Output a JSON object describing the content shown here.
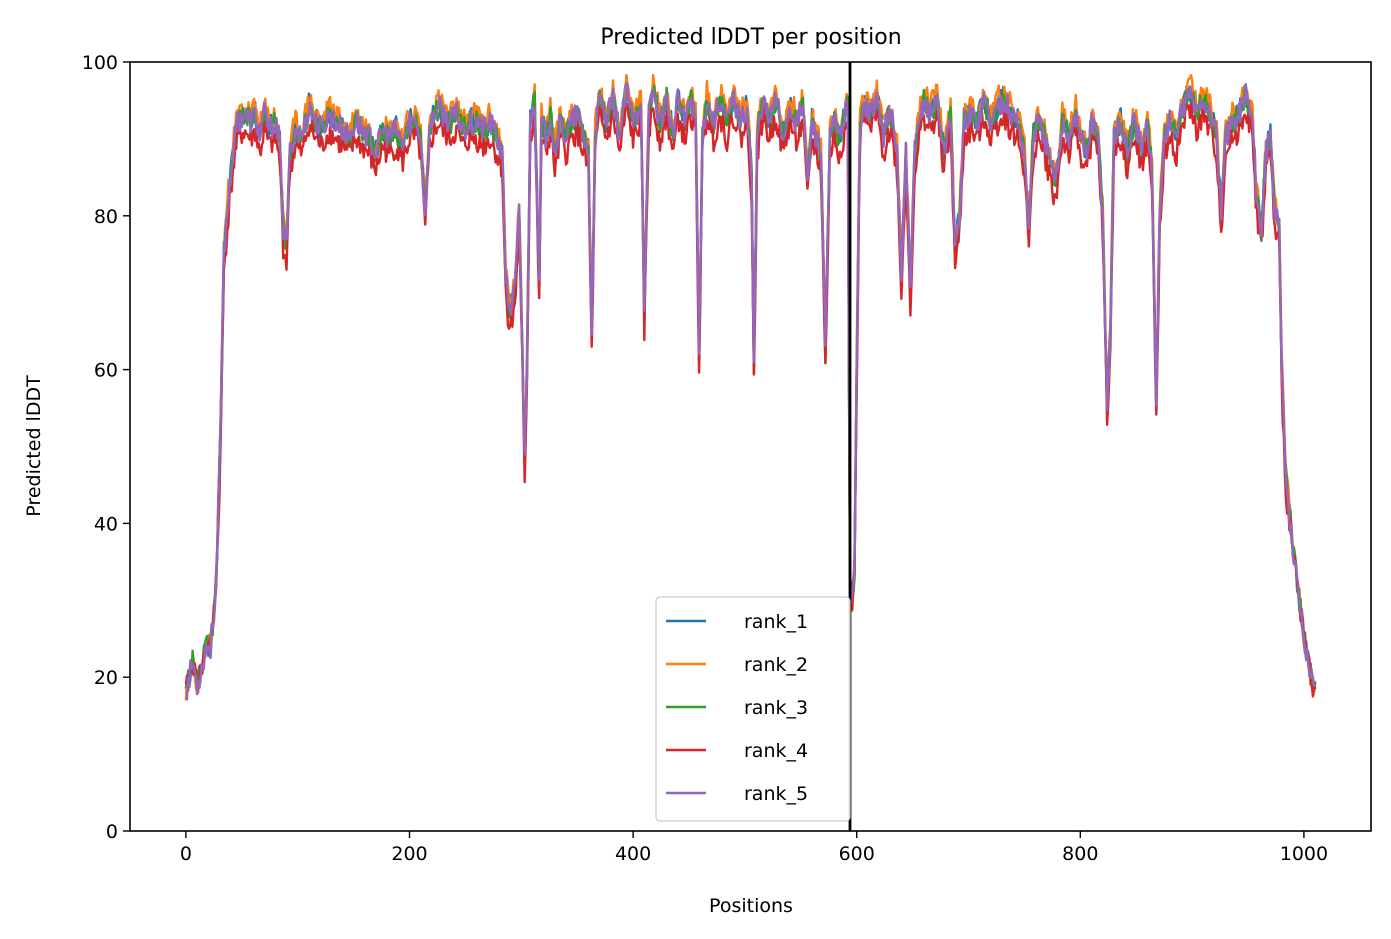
{
  "chart_data": {
    "type": "line",
    "title": "Predicted lDDT per position",
    "xlabel": "Positions",
    "ylabel": "Predicted lDDT",
    "xlim": [
      -50,
      1060
    ],
    "ylim": [
      0,
      100
    ],
    "xticks": [
      0,
      200,
      400,
      600,
      800,
      1000
    ],
    "yticks": [
      0,
      20,
      40,
      60,
      80,
      100
    ],
    "legend_position": "lower-center",
    "grid": false,
    "vline_x": 594,
    "n_positions": 1010,
    "profile_points": [
      [
        0,
        18
      ],
      [
        6,
        22
      ],
      [
        10,
        19
      ],
      [
        14,
        21
      ],
      [
        18,
        24
      ],
      [
        22,
        24
      ],
      [
        26,
        30
      ],
      [
        28,
        36
      ],
      [
        31,
        52
      ],
      [
        34,
        75
      ],
      [
        38,
        82
      ],
      [
        42,
        88
      ],
      [
        46,
        92
      ],
      [
        52,
        93
      ],
      [
        58,
        92
      ],
      [
        62,
        93
      ],
      [
        66,
        90
      ],
      [
        70,
        93
      ],
      [
        75,
        91
      ],
      [
        80,
        92
      ],
      [
        84,
        89
      ],
      [
        87,
        78
      ],
      [
        90,
        76
      ],
      [
        93,
        88
      ],
      [
        98,
        91
      ],
      [
        104,
        90
      ],
      [
        110,
        94
      ],
      [
        116,
        92
      ],
      [
        122,
        91
      ],
      [
        128,
        93
      ],
      [
        134,
        92
      ],
      [
        140,
        91
      ],
      [
        146,
        90
      ],
      [
        152,
        92
      ],
      [
        158,
        91
      ],
      [
        164,
        90
      ],
      [
        170,
        88
      ],
      [
        176,
        91
      ],
      [
        182,
        90
      ],
      [
        188,
        91
      ],
      [
        194,
        89
      ],
      [
        200,
        92
      ],
      [
        206,
        92
      ],
      [
        210,
        90
      ],
      [
        214,
        80
      ],
      [
        218,
        91
      ],
      [
        222,
        93
      ],
      [
        226,
        94
      ],
      [
        230,
        93
      ],
      [
        236,
        92
      ],
      [
        242,
        93
      ],
      [
        248,
        91
      ],
      [
        254,
        92
      ],
      [
        260,
        92
      ],
      [
        266,
        91
      ],
      [
        272,
        92
      ],
      [
        278,
        90
      ],
      [
        283,
        88
      ],
      [
        286,
        72
      ],
      [
        289,
        68
      ],
      [
        292,
        68
      ],
      [
        295,
        72
      ],
      [
        298,
        80
      ],
      [
        301,
        62
      ],
      [
        303,
        48
      ],
      [
        305,
        60
      ],
      [
        308,
        92
      ],
      [
        312,
        95
      ],
      [
        316,
        70
      ],
      [
        318,
        92
      ],
      [
        322,
        90
      ],
      [
        326,
        93
      ],
      [
        330,
        88
      ],
      [
        335,
        92
      ],
      [
        340,
        90
      ],
      [
        345,
        92
      ],
      [
        350,
        93
      ],
      [
        356,
        90
      ],
      [
        360,
        88
      ],
      [
        363,
        64
      ],
      [
        366,
        90
      ],
      [
        370,
        95
      ],
      [
        376,
        92
      ],
      [
        382,
        95
      ],
      [
        388,
        90
      ],
      [
        394,
        96
      ],
      [
        400,
        92
      ],
      [
        404,
        93
      ],
      [
        407,
        95
      ],
      [
        410,
        67
      ],
      [
        414,
        93
      ],
      [
        418,
        96
      ],
      [
        424,
        92
      ],
      [
        430,
        95
      ],
      [
        436,
        90
      ],
      [
        440,
        95
      ],
      [
        446,
        92
      ],
      [
        452,
        95
      ],
      [
        456,
        92
      ],
      [
        459,
        62
      ],
      [
        462,
        90
      ],
      [
        466,
        95
      ],
      [
        472,
        92
      ],
      [
        478,
        95
      ],
      [
        484,
        92
      ],
      [
        490,
        95
      ],
      [
        496,
        92
      ],
      [
        502,
        94
      ],
      [
        506,
        85
      ],
      [
        508,
        60
      ],
      [
        511,
        90
      ],
      [
        516,
        95
      ],
      [
        522,
        92
      ],
      [
        528,
        95
      ],
      [
        534,
        90
      ],
      [
        540,
        94
      ],
      [
        546,
        92
      ],
      [
        552,
        94
      ],
      [
        556,
        84
      ],
      [
        560,
        92
      ],
      [
        564,
        90
      ],
      [
        568,
        88
      ],
      [
        572,
        62
      ],
      [
        576,
        90
      ],
      [
        580,
        92
      ],
      [
        584,
        90
      ],
      [
        588,
        92
      ],
      [
        592,
        94
      ],
      [
        594,
        32
      ],
      [
        596,
        30
      ],
      [
        598,
        34
      ],
      [
        600,
        60
      ],
      [
        603,
        92
      ],
      [
        606,
        95
      ],
      [
        612,
        93
      ],
      [
        618,
        95
      ],
      [
        624,
        90
      ],
      [
        628,
        93
      ],
      [
        632,
        92
      ],
      [
        636,
        88
      ],
      [
        640,
        72
      ],
      [
        644,
        88
      ],
      [
        648,
        70
      ],
      [
        652,
        88
      ],
      [
        656,
        92
      ],
      [
        660,
        95
      ],
      [
        666,
        93
      ],
      [
        672,
        95
      ],
      [
        678,
        88
      ],
      [
        684,
        93
      ],
      [
        688,
        75
      ],
      [
        692,
        80
      ],
      [
        696,
        92
      ],
      [
        702,
        93
      ],
      [
        708,
        92
      ],
      [
        714,
        95
      ],
      [
        720,
        92
      ],
      [
        726,
        94
      ],
      [
        732,
        95
      ],
      [
        738,
        93
      ],
      [
        744,
        92
      ],
      [
        750,
        88
      ],
      [
        754,
        78
      ],
      [
        758,
        90
      ],
      [
        762,
        92
      ],
      [
        768,
        90
      ],
      [
        774,
        86
      ],
      [
        778,
        84
      ],
      [
        784,
        92
      ],
      [
        790,
        90
      ],
      [
        796,
        93
      ],
      [
        800,
        90
      ],
      [
        806,
        88
      ],
      [
        810,
        92
      ],
      [
        816,
        90
      ],
      [
        820,
        80
      ],
      [
        824,
        55
      ],
      [
        827,
        65
      ],
      [
        830,
        90
      ],
      [
        836,
        92
      ],
      [
        842,
        88
      ],
      [
        848,
        92
      ],
      [
        852,
        90
      ],
      [
        856,
        88
      ],
      [
        860,
        92
      ],
      [
        864,
        86
      ],
      [
        868,
        55
      ],
      [
        871,
        80
      ],
      [
        875,
        90
      ],
      [
        880,
        92
      ],
      [
        886,
        90
      ],
      [
        892,
        94
      ],
      [
        898,
        96
      ],
      [
        904,
        93
      ],
      [
        910,
        95
      ],
      [
        916,
        93
      ],
      [
        922,
        90
      ],
      [
        926,
        80
      ],
      [
        930,
        90
      ],
      [
        936,
        92
      ],
      [
        942,
        93
      ],
      [
        948,
        96
      ],
      [
        954,
        92
      ],
      [
        958,
        82
      ],
      [
        962,
        78
      ],
      [
        966,
        88
      ],
      [
        970,
        90
      ],
      [
        974,
        80
      ],
      [
        978,
        78
      ],
      [
        980,
        60
      ],
      [
        984,
        46
      ],
      [
        988,
        40
      ],
      [
        992,
        35
      ],
      [
        996,
        30
      ],
      [
        1000,
        25
      ],
      [
        1004,
        22
      ],
      [
        1008,
        19
      ],
      [
        1010,
        18
      ]
    ],
    "series": [
      {
        "name": "rank_1",
        "color": "#1f77b4",
        "offset": 0.4,
        "seed": 11
      },
      {
        "name": "rank_2",
        "color": "#ff7f0e",
        "offset": 1.2,
        "seed": 23
      },
      {
        "name": "rank_3",
        "color": "#2ca02c",
        "offset": 0.1,
        "seed": 37
      },
      {
        "name": "rank_4",
        "color": "#d62728",
        "offset": -2.0,
        "seed": 41
      },
      {
        "name": "rank_5",
        "color": "#9467bd",
        "offset": 0.2,
        "seed": 53
      }
    ]
  }
}
